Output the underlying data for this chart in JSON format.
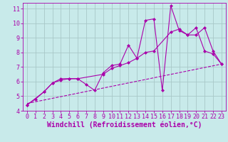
{
  "background_color": "#c8eaea",
  "grid_color": "#a8c8c8",
  "line_color": "#aa00aa",
  "xlabel": "Windchill (Refroidissement éolien,°C)",
  "xlim": [
    -0.5,
    23.5
  ],
  "ylim": [
    4,
    11.4
  ],
  "xticks": [
    0,
    1,
    2,
    3,
    4,
    5,
    6,
    7,
    8,
    9,
    10,
    11,
    12,
    13,
    14,
    15,
    16,
    17,
    18,
    19,
    20,
    21,
    22,
    23
  ],
  "yticks": [
    4,
    5,
    6,
    7,
    8,
    9,
    10,
    11
  ],
  "series1": {
    "x": [
      0,
      1,
      2,
      3,
      4,
      5,
      6,
      7,
      8,
      9,
      10,
      11,
      12,
      13,
      14,
      15,
      16,
      17,
      18,
      19,
      20,
      21,
      22,
      23
    ],
    "y": [
      4.4,
      4.8,
      5.3,
      5.9,
      6.1,
      6.2,
      6.2,
      5.8,
      5.4,
      6.6,
      7.1,
      7.2,
      8.5,
      7.6,
      10.2,
      10.3,
      5.4,
      11.2,
      9.5,
      9.2,
      9.7,
      8.1,
      7.9,
      7.2
    ]
  },
  "series2": {
    "x": [
      0,
      2,
      3,
      4,
      5,
      6,
      9,
      10,
      11,
      12,
      13,
      14,
      15,
      17,
      18,
      19,
      20,
      21,
      22,
      23
    ],
    "y": [
      4.4,
      5.3,
      5.9,
      6.2,
      6.2,
      6.2,
      6.5,
      6.9,
      7.1,
      7.3,
      7.6,
      8.0,
      8.1,
      9.4,
      9.6,
      9.2,
      9.2,
      9.7,
      8.1,
      7.2
    ]
  },
  "series3_dashed": {
    "x": [
      0,
      23
    ],
    "y": [
      4.5,
      7.2
    ]
  },
  "font_size_label": 7,
  "font_size_tick": 6,
  "marker": "D",
  "marker_size": 2.0,
  "linewidth": 0.8
}
